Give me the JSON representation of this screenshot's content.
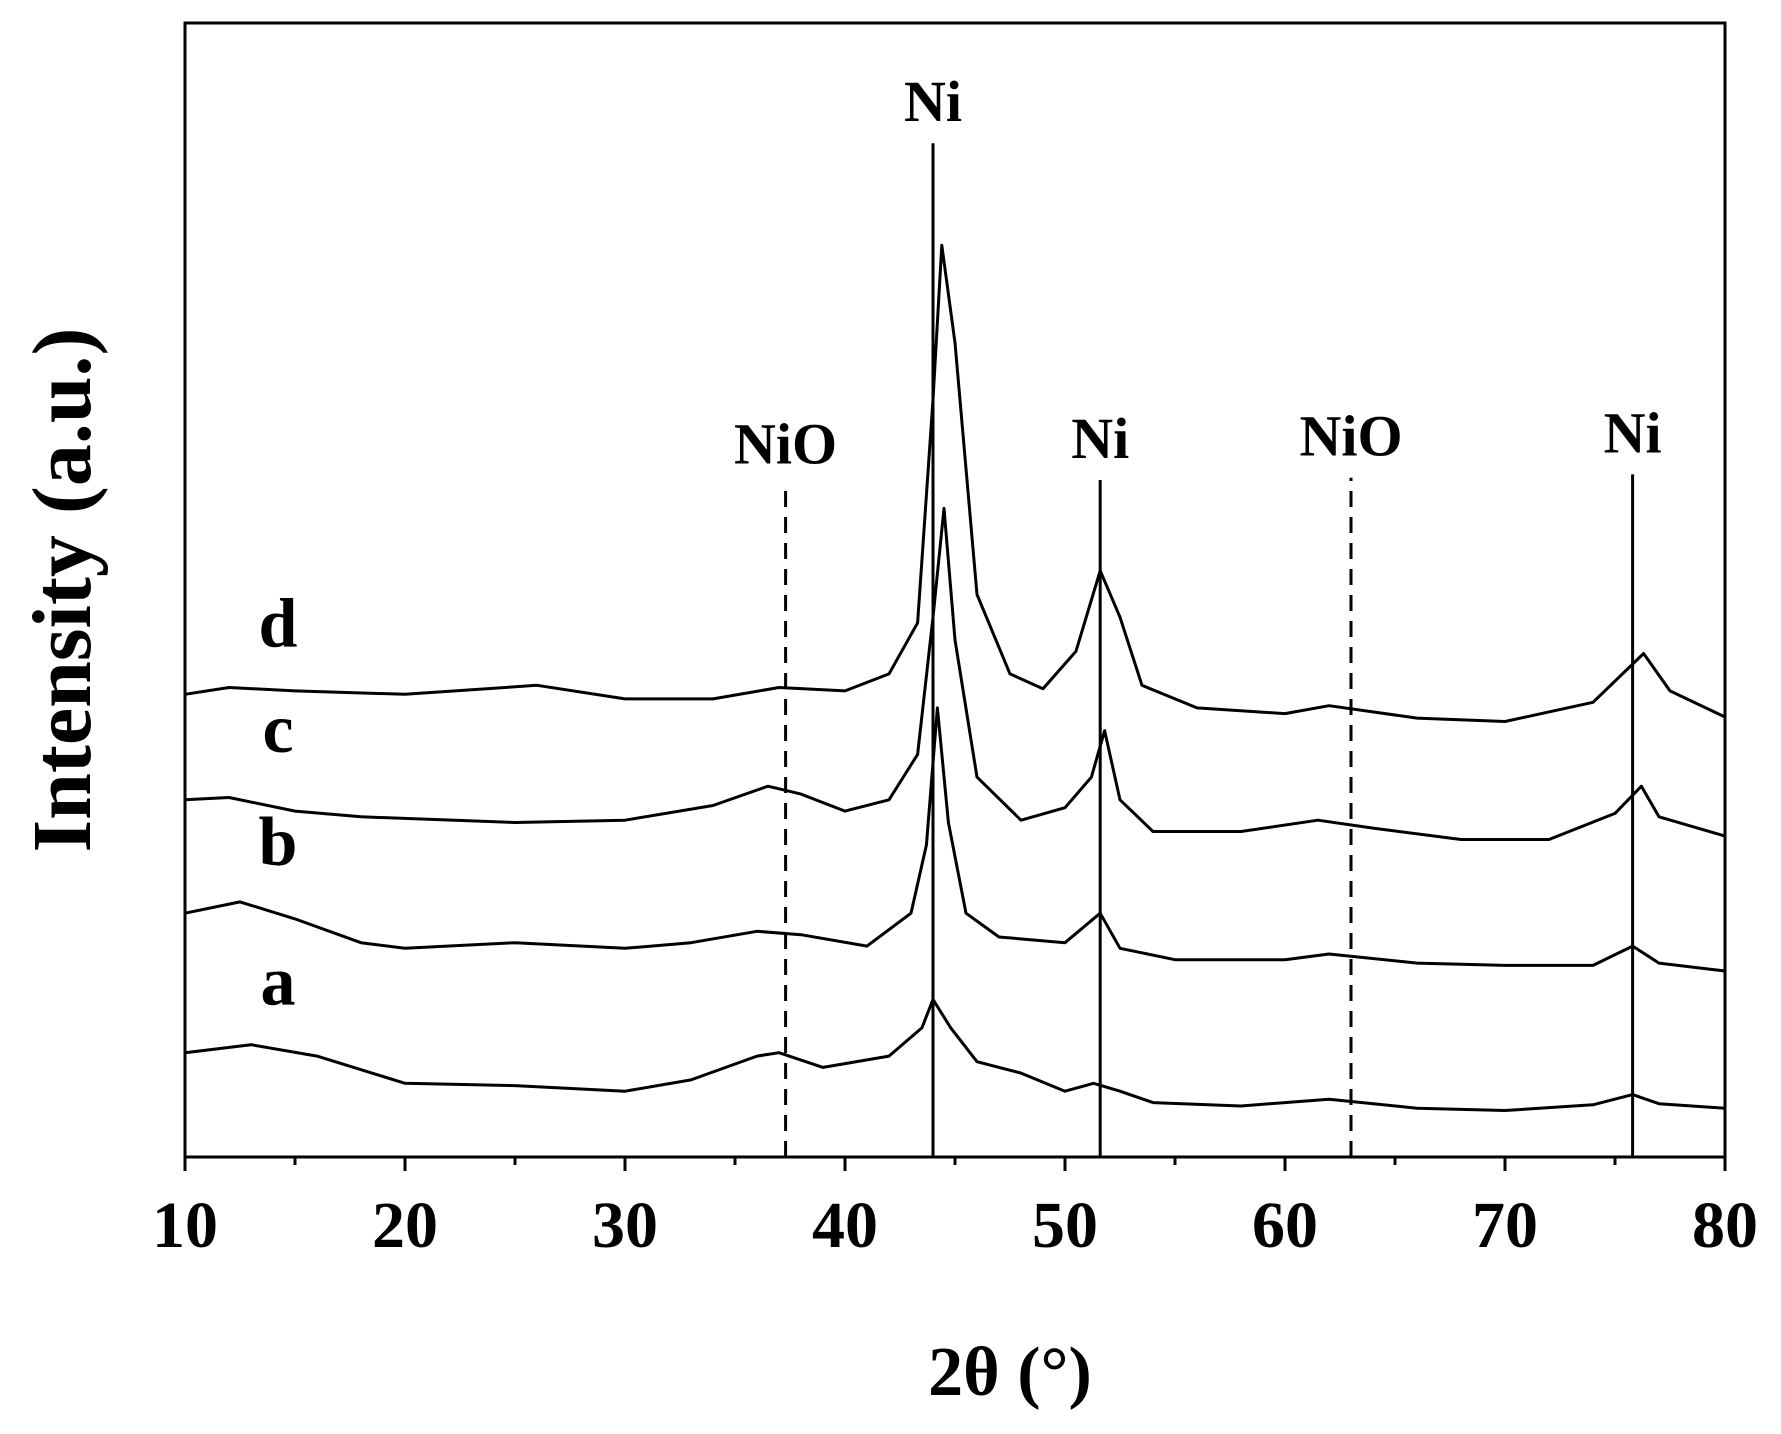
{
  "chart_data": {
    "type": "line",
    "x_label": "2θ (°)",
    "y_label": "Intensity (a.u.)",
    "xlim": [
      10,
      80
    ],
    "xticks": [
      10,
      20,
      30,
      40,
      50,
      60,
      70,
      80
    ],
    "xminorticks": [
      15,
      25,
      35,
      45,
      55,
      65,
      75
    ],
    "ylim": [
      0,
      100
    ],
    "series": [
      {
        "name": "a",
        "color": "#000000",
        "x": [
          10,
          13,
          16,
          20,
          25,
          30,
          33,
          36,
          37,
          39,
          42,
          43.5,
          44,
          44.8,
          46,
          48,
          50,
          51.3,
          52.5,
          54,
          58,
          62,
          66,
          70,
          74,
          75.8,
          77,
          80
        ],
        "values": [
          9.2,
          9.9,
          8.9,
          6.5,
          6.3,
          5.8,
          6.8,
          8.9,
          9.2,
          7.9,
          8.9,
          11.4,
          13.9,
          11.4,
          8.4,
          7.4,
          5.8,
          6.5,
          5.8,
          4.8,
          4.5,
          5.1,
          4.3,
          4.1,
          4.6,
          5.5,
          4.7,
          4.3
        ]
      },
      {
        "name": "b",
        "color": "#000000",
        "x": [
          10,
          12.5,
          15,
          18,
          20,
          25,
          30,
          33,
          36,
          38,
          41,
          43,
          43.7,
          44.2,
          44.7,
          45.5,
          47,
          50,
          51.6,
          52.5,
          55,
          60,
          62,
          66,
          70,
          74,
          75.8,
          77,
          80
        ],
        "values": [
          21.5,
          22.5,
          21.0,
          18.9,
          18.4,
          18.9,
          18.4,
          18.9,
          19.9,
          19.6,
          18.6,
          21.5,
          27.5,
          39.6,
          29.5,
          21.5,
          19.4,
          18.9,
          21.5,
          18.4,
          17.4,
          17.4,
          17.9,
          17.1,
          16.9,
          16.9,
          18.6,
          17.1,
          16.4
        ]
      },
      {
        "name": "c",
        "color": "#000000",
        "x": [
          10,
          12,
          15,
          18,
          25,
          30,
          34,
          36.5,
          38,
          40,
          42,
          43.3,
          44,
          44.5,
          45,
          46,
          48,
          50,
          51.2,
          51.8,
          52.5,
          54,
          58,
          61.5,
          64,
          68,
          72,
          75,
          76.2,
          77,
          80
        ],
        "values": [
          31.5,
          31.7,
          30.5,
          30.0,
          29.5,
          29.7,
          31.0,
          32.7,
          32.0,
          30.5,
          31.5,
          35.5,
          47.6,
          57.2,
          45.6,
          33.5,
          29.7,
          30.8,
          33.5,
          37.6,
          31.5,
          28.7,
          28.7,
          29.7,
          29.0,
          28.0,
          28.0,
          30.3,
          32.7,
          30.0,
          28.3
        ]
      },
      {
        "name": "d",
        "color": "#000000",
        "x": [
          10,
          12,
          15,
          20,
          26,
          30,
          34,
          37,
          40,
          42,
          43.3,
          44,
          44.4,
          45,
          46,
          47.5,
          49,
          50.5,
          51.6,
          52.5,
          53.5,
          56,
          60,
          62,
          66,
          70,
          74,
          76.3,
          77.5,
          80
        ],
        "values": [
          40.8,
          41.4,
          41.1,
          40.8,
          41.6,
          40.4,
          40.4,
          41.4,
          41.1,
          42.6,
          47.1,
          66.8,
          80.4,
          71.8,
          49.6,
          42.6,
          41.3,
          44.6,
          51.7,
          47.6,
          41.6,
          39.6,
          39.1,
          39.8,
          38.7,
          38.4,
          40.1,
          44.4,
          41.1,
          38.8
        ]
      }
    ],
    "reference_lines": [
      {
        "label": "NiO",
        "x": 37.3,
        "y_top": 59.2,
        "style": "dashed"
      },
      {
        "label": "Ni",
        "x": 44.0,
        "y_top": 89.4,
        "style": "solid"
      },
      {
        "label": "Ni",
        "x": 51.6,
        "y_top": 59.7,
        "style": "solid"
      },
      {
        "label": "NiO",
        "x": 63.0,
        "y_top": 59.9,
        "style": "dashed"
      },
      {
        "label": "Ni",
        "x": 75.8,
        "y_top": 60.2,
        "style": "solid"
      }
    ]
  }
}
